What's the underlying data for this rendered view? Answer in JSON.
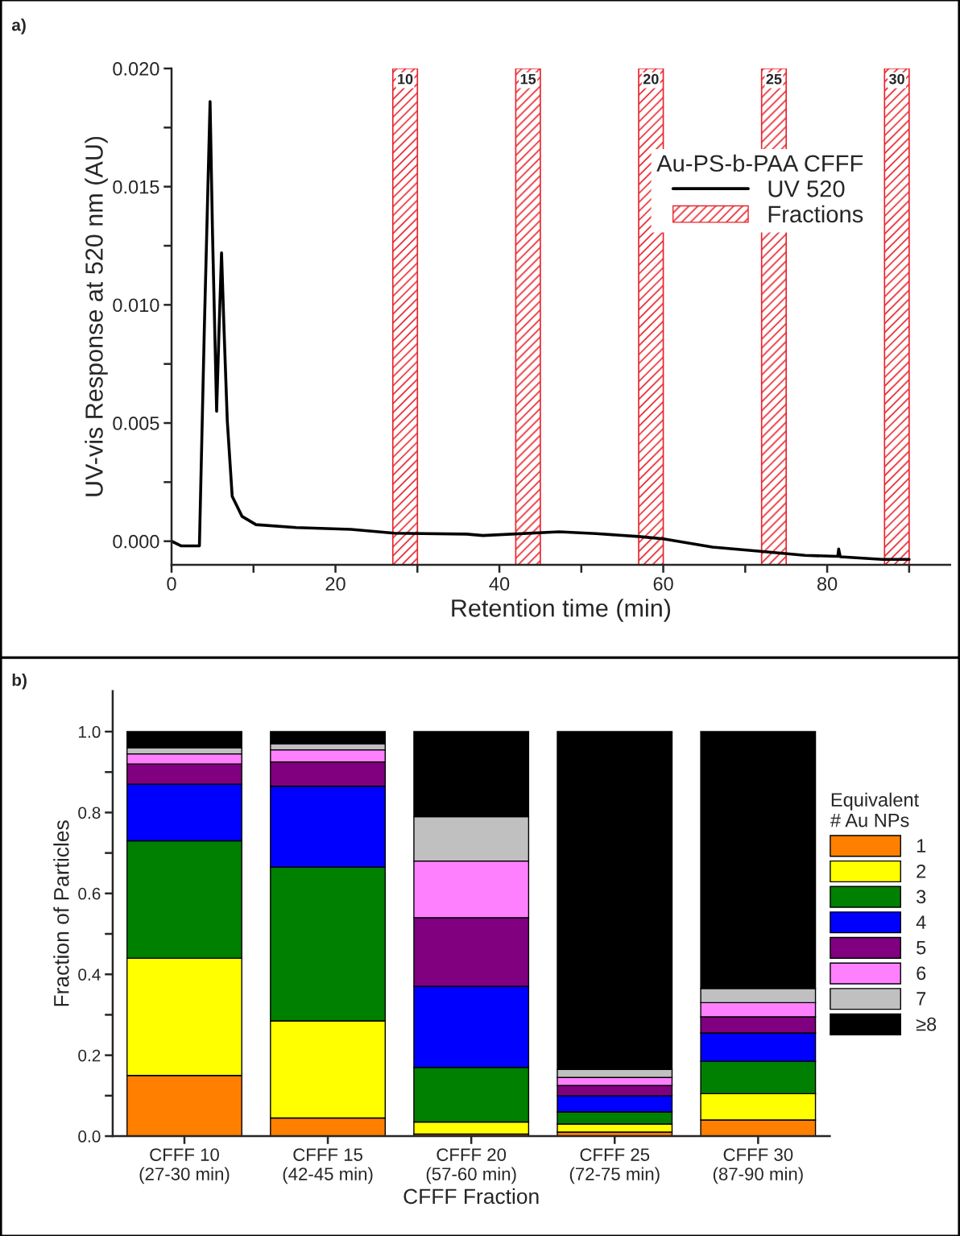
{
  "chart_data": [
    {
      "type": "line",
      "xlabel": "Retention time (min)",
      "ylabel": "UV-vis Response at 520 nm (AU)",
      "legend_title": "Au-PS-b-PAA CFFF",
      "legend": "top right",
      "line_style": "solid",
      "marker": "none",
      "grid": false,
      "annotations": [
        "a)",
        "Fractions"
      ],
      "xlim": [
        0,
        95
      ],
      "ylim": [
        -0.001,
        0.02
      ],
      "xticks": [
        0,
        {
          "value": 10,
          "label": null
        },
        20,
        {
          "value": 30,
          "label": null
        },
        40,
        {
          "value": 50,
          "label": null
        },
        60,
        {
          "value": 70,
          "label": null
        },
        80,
        {
          "value": 90,
          "label": null
        }
      ],
      "yticks": [
        {
          "value": 0.0,
          "label": "0.000"
        },
        {
          "value": 0.0025,
          "label": null
        },
        {
          "value": 0.005,
          "label": "0.005"
        },
        {
          "value": 0.0075,
          "label": null
        },
        {
          "value": 0.01,
          "label": "0.010"
        },
        {
          "value": 0.0125,
          "label": null
        },
        {
          "value": 0.015,
          "label": "0.015"
        },
        {
          "value": 0.0175,
          "label": null
        },
        {
          "value": 0.02,
          "label": "0.020"
        }
      ],
      "series": [
        {
          "name": "UV 520",
          "color": "#000000",
          "x": [
            0,
            1.2,
            3.4,
            4.0,
            4.7,
            5.0,
            5.5,
            5.8,
            6.1,
            6.4,
            6.8,
            7.4,
            8.6,
            10.3,
            15.2,
            21.9,
            27.2,
            36,
            38,
            47.3,
            51.8,
            57,
            60,
            66,
            71.6,
            77.3,
            81.3,
            81.4,
            81.6,
            86.7,
            90
          ],
          "values": [
            0.0,
            -0.0002,
            -0.0002,
            0.009,
            0.0186,
            0.013,
            0.0055,
            0.009,
            0.0122,
            0.009,
            0.0051,
            0.0019,
            0.00105,
            0.0007,
            0.00058,
            0.0005,
            0.00034,
            0.0003,
            0.00024,
            0.0004,
            0.00032,
            0.0002,
            0.0001,
            -0.00025,
            -0.00042,
            -0.0006,
            -0.00064,
            -0.00033,
            -0.00066,
            -0.00077,
            -0.00077
          ]
        }
      ],
      "bands": [
        {
          "axis": "x",
          "from": 27,
          "to": 30,
          "label": "10",
          "color": "#e8242c"
        },
        {
          "axis": "x",
          "from": 42,
          "to": 45,
          "label": "15",
          "color": "#e8242c"
        },
        {
          "axis": "x",
          "from": 57,
          "to": 60,
          "label": "20",
          "color": "#e8242c"
        },
        {
          "axis": "x",
          "from": 72,
          "to": 75,
          "label": "25",
          "color": "#e8242c"
        },
        {
          "axis": "x",
          "from": 87,
          "to": 90,
          "label": "30",
          "color": "#e8242c"
        }
      ]
    },
    {
      "type": "bar",
      "stacked": true,
      "xlabel": "CFFF Fraction",
      "ylabel": "Fraction of Particles",
      "legend_title": "Equivalent\n# Au NPs",
      "legend": "right",
      "grid": false,
      "annotations": [
        "b)"
      ],
      "categories": [
        "CFFF 10\n(27-30 min)",
        "CFFF 15\n(42-45 min)",
        "CFFF 20\n(57-60 min)",
        "CFFF 25\n(72-75 min)",
        "CFFF 30\n(87-90 min)"
      ],
      "ylim": [
        0,
        1.1
      ],
      "yticks": [
        {
          "value": 0.0,
          "label": "0.0"
        },
        {
          "value": 0.1,
          "label": null
        },
        {
          "value": 0.2,
          "label": "0.2"
        },
        {
          "value": 0.3,
          "label": null
        },
        {
          "value": 0.4,
          "label": "0.4"
        },
        {
          "value": 0.5,
          "label": null
        },
        {
          "value": 0.6,
          "label": "0.6"
        },
        {
          "value": 0.7,
          "label": null
        },
        {
          "value": 0.8,
          "label": "0.8"
        },
        {
          "value": 0.9,
          "label": null
        },
        {
          "value": 1.0,
          "label": "1.0"
        }
      ],
      "series": [
        {
          "name": "1",
          "color": "#ff8000",
          "values": [
            0.15,
            0.045,
            0.005,
            0.01,
            0.04
          ]
        },
        {
          "name": "2",
          "color": "#ffff00",
          "values": [
            0.29,
            0.24,
            0.03,
            0.02,
            0.065
          ]
        },
        {
          "name": "3",
          "color": "#008000",
          "values": [
            0.29,
            0.38,
            0.135,
            0.03,
            0.08
          ]
        },
        {
          "name": "4",
          "color": "#0000ff",
          "values": [
            0.14,
            0.2,
            0.2,
            0.04,
            0.07
          ]
        },
        {
          "name": "5",
          "color": "#800080",
          "values": [
            0.05,
            0.06,
            0.17,
            0.025,
            0.04
          ]
        },
        {
          "name": "6",
          "color": "#ff80ff",
          "values": [
            0.025,
            0.03,
            0.14,
            0.02,
            0.035
          ]
        },
        {
          "name": "7",
          "color": "#c0c0c0",
          "values": [
            0.015,
            0.015,
            0.11,
            0.02,
            0.035
          ]
        },
        {
          "name": "≥8",
          "color": "#000000",
          "values": [
            0.04,
            0.03,
            0.21,
            0.835,
            0.635
          ]
        }
      ]
    }
  ]
}
